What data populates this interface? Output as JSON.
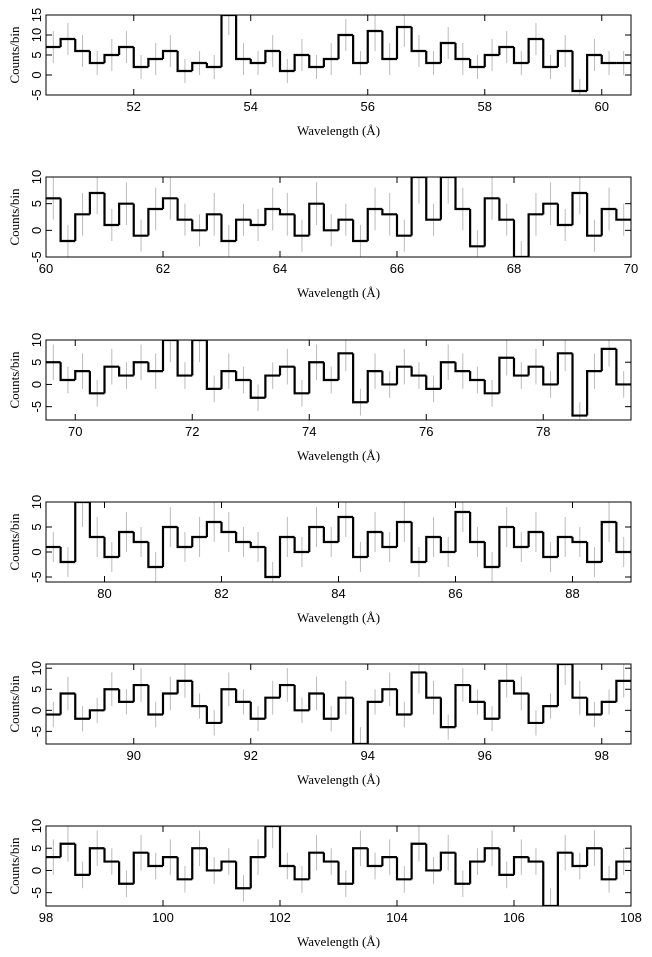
{
  "chart_data": [
    {
      "type": "histogram",
      "xlabel": "Wavelength (Å)",
      "ylabel": "Counts/bin",
      "color": "#000000",
      "error_color": "#bbbbbb",
      "bins": [
        50.5,
        50.75,
        51,
        51.25,
        51.5,
        51.75,
        52,
        52.25,
        52.5,
        52.75,
        53,
        53.25,
        53.5,
        53.75,
        54,
        54.25,
        54.5,
        54.75,
        55,
        55.25,
        55.5,
        55.75,
        56,
        56.25,
        56.5,
        56.75,
        57,
        57.25,
        57.5,
        57.75,
        58,
        58.25,
        58.5,
        58.75,
        59,
        59.25,
        59.5,
        59.75,
        60,
        60.25,
        60.5
      ],
      "values": [
        7,
        9,
        6,
        3,
        5,
        7,
        2,
        4,
        6,
        1,
        3,
        2,
        15,
        4,
        3,
        6,
        1,
        5,
        2,
        4,
        10,
        3,
        11,
        4,
        12,
        6,
        3,
        8,
        4,
        2,
        5,
        7,
        3,
        9,
        2,
        6,
        -4,
        5,
        3,
        3
      ],
      "errors": [
        4,
        4,
        4,
        3,
        4,
        4,
        3,
        4,
        4,
        3,
        3,
        3,
        5,
        4,
        3,
        4,
        3,
        4,
        3,
        4,
        4,
        3,
        5,
        4,
        5,
        4,
        3,
        4,
        4,
        3,
        4,
        4,
        3,
        4,
        3,
        4,
        3,
        4,
        3,
        3
      ],
      "xlim": [
        50.5,
        60.5
      ],
      "xticks": [
        52,
        54,
        56,
        58,
        60
      ],
      "ylim": [
        -5,
        15
      ],
      "yticks": [
        -5,
        0,
        5,
        10,
        15
      ]
    },
    {
      "type": "histogram",
      "xlabel": "Wavelength (Å)",
      "ylabel": "Counts/bin",
      "color": "#000000",
      "error_color": "#bbbbbb",
      "bins": [
        60,
        60.25,
        60.5,
        60.75,
        61,
        61.25,
        61.5,
        61.75,
        62,
        62.25,
        62.5,
        62.75,
        63,
        63.25,
        63.5,
        63.75,
        64,
        64.25,
        64.5,
        64.75,
        65,
        65.25,
        65.5,
        65.75,
        66,
        66.25,
        66.5,
        66.75,
        67,
        67.25,
        67.5,
        67.75,
        68,
        68.25,
        68.5,
        68.75,
        69,
        69.25,
        69.5,
        69.75,
        70
      ],
      "values": [
        6,
        -2,
        3,
        7,
        1,
        5,
        -1,
        4,
        6,
        2,
        0,
        3,
        -2,
        2,
        1,
        4,
        3,
        -1,
        5,
        0,
        2,
        -2,
        4,
        3,
        -1,
        10,
        2,
        10,
        4,
        -3,
        6,
        2,
        -5,
        3,
        5,
        1,
        7,
        -1,
        4,
        2
      ],
      "errors": [
        4,
        3,
        4,
        4,
        3,
        4,
        3,
        4,
        4,
        3,
        3,
        4,
        3,
        3,
        3,
        4,
        4,
        3,
        4,
        3,
        3,
        3,
        4,
        4,
        3,
        5,
        3,
        5,
        4,
        3,
        4,
        3,
        3,
        4,
        4,
        3,
        4,
        3,
        4,
        3
      ],
      "xlim": [
        60,
        70
      ],
      "xticks": [
        60,
        62,
        64,
        66,
        68,
        70
      ],
      "ylim": [
        -5,
        10
      ],
      "yticks": [
        -5,
        0,
        5,
        10
      ]
    },
    {
      "type": "histogram",
      "xlabel": "Wavelength (Å)",
      "ylabel": "Counts/bin",
      "color": "#000000",
      "error_color": "#bbbbbb",
      "bins": [
        69.5,
        69.75,
        70,
        70.25,
        70.5,
        70.75,
        71,
        71.25,
        71.5,
        71.75,
        72,
        72.25,
        72.5,
        72.75,
        73,
        73.25,
        73.5,
        73.75,
        74,
        74.25,
        74.5,
        74.75,
        75,
        75.25,
        75.5,
        75.75,
        76,
        76.25,
        76.5,
        76.75,
        77,
        77.25,
        77.5,
        77.75,
        78,
        78.25,
        78.5,
        78.75,
        79,
        79.25,
        79.5
      ],
      "values": [
        5,
        1,
        3,
        -2,
        4,
        2,
        5,
        3,
        10,
        2,
        10,
        -1,
        3,
        1,
        -3,
        2,
        4,
        -2,
        5,
        1,
        7,
        -4,
        3,
        0,
        4,
        2,
        -1,
        5,
        3,
        1,
        -2,
        6,
        2,
        4,
        0,
        7,
        -7,
        3,
        8,
        0
      ],
      "errors": [
        4,
        3,
        4,
        3,
        4,
        3,
        4,
        4,
        5,
        3,
        5,
        3,
        4,
        3,
        3,
        3,
        4,
        3,
        4,
        3,
        4,
        3,
        4,
        3,
        4,
        3,
        3,
        4,
        4,
        3,
        3,
        4,
        3,
        4,
        3,
        4,
        3,
        4,
        4,
        3
      ],
      "xlim": [
        69.5,
        79.5
      ],
      "xticks": [
        70,
        72,
        74,
        76,
        78
      ],
      "ylim": [
        -8,
        10
      ],
      "yticks": [
        -5,
        0,
        5,
        10
      ]
    },
    {
      "type": "histogram",
      "xlabel": "Wavelength (Å)",
      "ylabel": "Counts/bin",
      "color": "#000000",
      "error_color": "#bbbbbb",
      "bins": [
        79,
        79.25,
        79.5,
        79.75,
        80,
        80.25,
        80.5,
        80.75,
        81,
        81.25,
        81.5,
        81.75,
        82,
        82.25,
        82.5,
        82.75,
        83,
        83.25,
        83.5,
        83.75,
        84,
        84.25,
        84.5,
        84.75,
        85,
        85.25,
        85.5,
        85.75,
        86,
        86.25,
        86.5,
        86.75,
        87,
        87.25,
        87.5,
        87.75,
        88,
        88.25,
        88.5,
        88.75,
        89
      ],
      "values": [
        1,
        -2,
        10,
        3,
        -1,
        4,
        2,
        -3,
        5,
        1,
        3,
        6,
        4,
        2,
        1,
        -5,
        3,
        0,
        5,
        2,
        7,
        -1,
        4,
        1,
        6,
        -2,
        3,
        0,
        8,
        2,
        -3,
        5,
        1,
        4,
        -1,
        3,
        2,
        -2,
        6,
        0
      ],
      "errors": [
        3,
        3,
        5,
        4,
        3,
        4,
        3,
        3,
        4,
        3,
        4,
        4,
        4,
        3,
        3,
        3,
        4,
        3,
        4,
        3,
        4,
        3,
        4,
        3,
        4,
        3,
        4,
        3,
        4,
        3,
        3,
        4,
        3,
        4,
        3,
        4,
        3,
        3,
        4,
        3
      ],
      "xlim": [
        79,
        89
      ],
      "xticks": [
        80,
        82,
        84,
        86,
        88
      ],
      "ylim": [
        -6,
        10
      ],
      "yticks": [
        -5,
        0,
        5,
        10
      ]
    },
    {
      "type": "histogram",
      "xlabel": "Wavelength (Å)",
      "ylabel": "Counts/bin",
      "color": "#000000",
      "error_color": "#bbbbbb",
      "bins": [
        88.5,
        88.75,
        89,
        89.25,
        89.5,
        89.75,
        90,
        90.25,
        90.5,
        90.75,
        91,
        91.25,
        91.5,
        91.75,
        92,
        92.25,
        92.5,
        92.75,
        93,
        93.25,
        93.5,
        93.75,
        94,
        94.25,
        94.5,
        94.75,
        95,
        95.25,
        95.5,
        95.75,
        96,
        96.25,
        96.5,
        96.75,
        97,
        97.25,
        97.5,
        97.75,
        98,
        98.25,
        98.5
      ],
      "values": [
        -1,
        4,
        -2,
        0,
        5,
        2,
        6,
        -1,
        4,
        7,
        1,
        -3,
        5,
        2,
        -2,
        3,
        6,
        0,
        4,
        -2,
        3,
        -8,
        2,
        5,
        -1,
        9,
        3,
        -4,
        6,
        2,
        -2,
        7,
        4,
        -3,
        1,
        11,
        3,
        -1,
        2,
        7
      ],
      "errors": [
        3,
        4,
        3,
        3,
        4,
        3,
        4,
        3,
        4,
        4,
        3,
        3,
        4,
        3,
        3,
        4,
        4,
        3,
        4,
        3,
        4,
        4,
        3,
        4,
        3,
        5,
        4,
        3,
        4,
        3,
        3,
        4,
        4,
        3,
        3,
        5,
        4,
        3,
        3,
        4
      ],
      "xlim": [
        88.5,
        98.5
      ],
      "xticks": [
        90,
        92,
        94,
        96,
        98
      ],
      "ylim": [
        -8,
        11
      ],
      "yticks": [
        -5,
        0,
        5,
        10
      ]
    },
    {
      "type": "histogram",
      "xlabel": "Wavelength (Å)",
      "ylabel": "Counts/bin",
      "color": "#000000",
      "error_color": "#bbbbbb",
      "bins": [
        98,
        98.25,
        98.5,
        98.75,
        99,
        99.25,
        99.5,
        99.75,
        100,
        100.25,
        100.5,
        100.75,
        101,
        101.25,
        101.5,
        101.75,
        102,
        102.25,
        102.5,
        102.75,
        103,
        103.25,
        103.5,
        103.75,
        104,
        104.25,
        104.5,
        104.75,
        105,
        105.25,
        105.5,
        105.75,
        106,
        106.25,
        106.5,
        106.75,
        107,
        107.25,
        107.5,
        107.75,
        108
      ],
      "values": [
        3,
        6,
        -1,
        5,
        2,
        -3,
        4,
        1,
        3,
        -2,
        5,
        0,
        2,
        -4,
        3,
        10,
        1,
        -2,
        4,
        2,
        -3,
        5,
        1,
        3,
        -2,
        6,
        0,
        4,
        -3,
        2,
        5,
        -1,
        3,
        2,
        -8,
        4,
        1,
        5,
        -2,
        2
      ],
      "errors": [
        4,
        4,
        3,
        4,
        3,
        3,
        4,
        3,
        4,
        3,
        4,
        3,
        3,
        3,
        4,
        5,
        3,
        3,
        4,
        3,
        3,
        4,
        3,
        4,
        3,
        4,
        3,
        4,
        3,
        3,
        4,
        3,
        4,
        3,
        4,
        4,
        3,
        4,
        3,
        3
      ],
      "xlim": [
        98,
        108
      ],
      "xticks": [
        98,
        100,
        102,
        104,
        106,
        108
      ],
      "ylim": [
        -8,
        10
      ],
      "yticks": [
        -5,
        0,
        5,
        10
      ]
    }
  ]
}
